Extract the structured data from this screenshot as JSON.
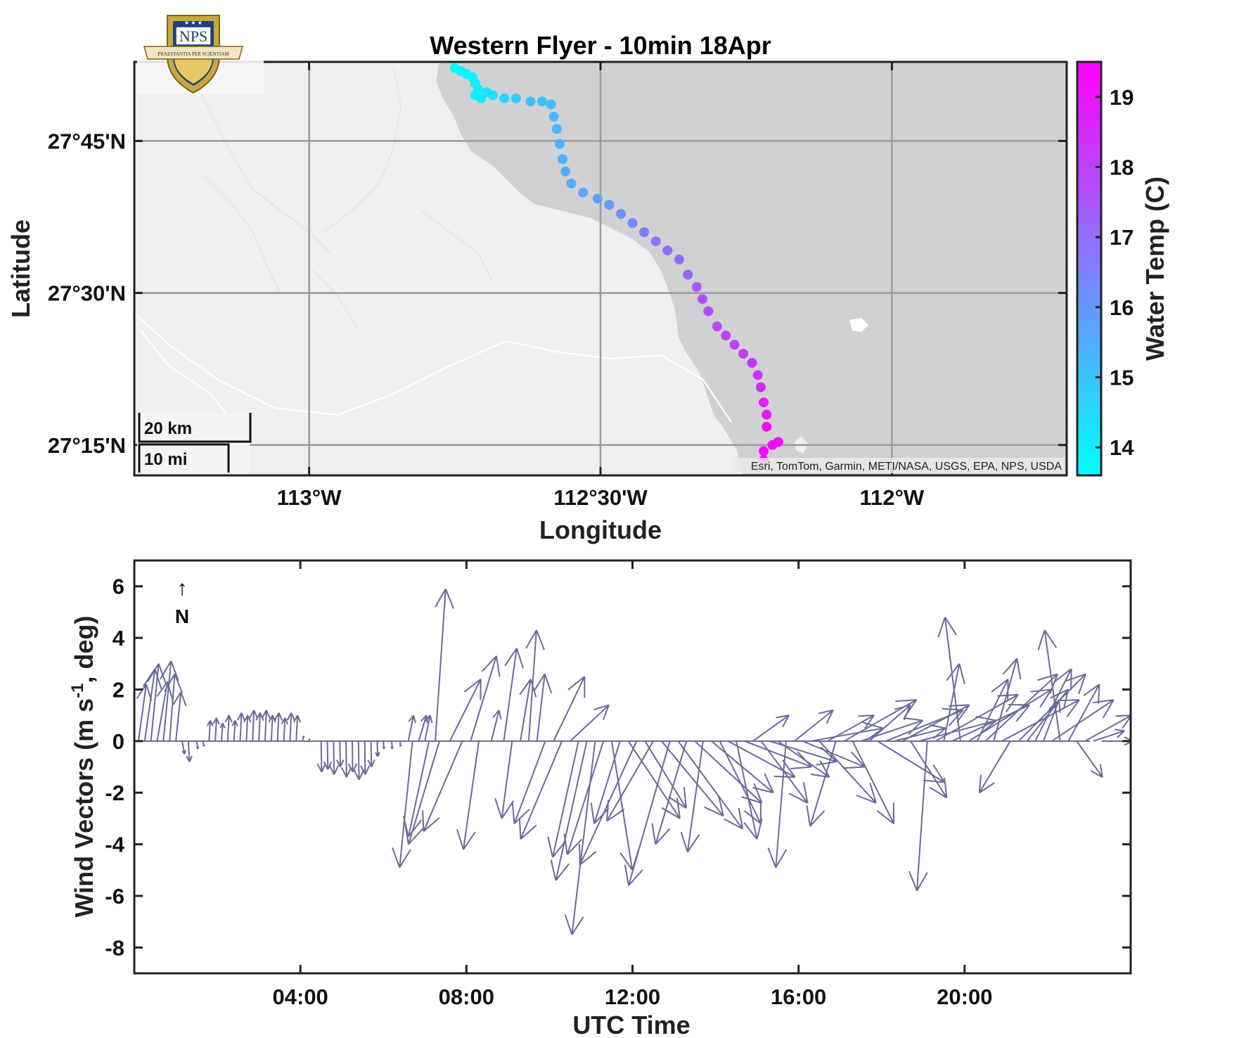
{
  "title": "Western Flyer - 10min 18Apr",
  "map": {
    "xlabel": "Longitude",
    "ylabel": "Latitude",
    "lon_range": [
      -113.3,
      -111.7
    ],
    "lat_range": [
      27.2,
      27.88
    ],
    "lon_ticks": [
      -113.0,
      -112.5,
      -112.0
    ],
    "lon_tick_labels": [
      "113°W",
      "112°30'W",
      "112°W"
    ],
    "lat_ticks": [
      27.25,
      27.5,
      27.75
    ],
    "lat_tick_labels": [
      "27°15'N",
      "27°30'N",
      "27°45'N"
    ],
    "grid": true,
    "attribution": "Esri, TomTom, Garmin, METI/NASA, USGS, EPA, NPS, USDA",
    "scalebar_km": "20 km",
    "scalebar_mi": "10 mi",
    "logo_text": "NPS",
    "logo_motto": "PRAESTANTIA PER SCIENTIAM",
    "land_color": "#efefef",
    "sea_color": "#cfd1d2"
  },
  "colorbar": {
    "label": "Water Temp (C)",
    "range": [
      13.6,
      19.5
    ],
    "ticks": [
      14,
      15,
      16,
      17,
      18,
      19
    ],
    "tick_labels": [
      "14",
      "15",
      "16",
      "17",
      "18",
      "19"
    ],
    "color_low": "#00ffff",
    "color_high": "#ff00ff",
    "colormap": "cool"
  },
  "wind": {
    "xlabel": "UTC Time",
    "ylabel": "Wind Vectors (m s",
    "ylabel_sup": "-1",
    "ylabel_end": ", deg)",
    "x_range_hours": [
      0,
      24
    ],
    "y_range": [
      -9,
      7
    ],
    "y_ticks": [
      6,
      4,
      2,
      0,
      -2,
      -4,
      -6,
      -8
    ],
    "y_tick_labels": [
      "6",
      "4",
      "2",
      "0",
      "-2",
      "-4",
      "-6",
      "-8"
    ],
    "x_ticks_hours": [
      4,
      8,
      12,
      16,
      20
    ],
    "x_tick_labels": [
      "04:00",
      "08:00",
      "12:00",
      "16:00",
      "20:00"
    ],
    "north_label": "N",
    "north_arrow": "↑",
    "vector_color": "#6a6a9a"
  },
  "chart_data": [
    {
      "type": "scatter",
      "title": "Western Flyer - 10min 18Apr",
      "xlabel": "Longitude",
      "ylabel": "Latitude",
      "xlim": [
        -113.3,
        -111.7
      ],
      "ylim": [
        27.2,
        27.88
      ],
      "color_variable": "Water Temp (C)",
      "points": [
        {
          "lon": -112.75,
          "lat": 27.87,
          "temp": 13.7
        },
        {
          "lon": -112.74,
          "lat": 27.865,
          "temp": 13.8
        },
        {
          "lon": -112.73,
          "lat": 27.86,
          "temp": 13.9
        },
        {
          "lon": -112.72,
          "lat": 27.855,
          "temp": 13.9
        },
        {
          "lon": -112.715,
          "lat": 27.845,
          "temp": 14.0
        },
        {
          "lon": -112.71,
          "lat": 27.835,
          "temp": 14.0
        },
        {
          "lon": -112.715,
          "lat": 27.825,
          "temp": 14.0
        },
        {
          "lon": -112.705,
          "lat": 27.82,
          "temp": 14.1
        },
        {
          "lon": -112.695,
          "lat": 27.83,
          "temp": 14.2
        },
        {
          "lon": -112.685,
          "lat": 27.825,
          "temp": 14.3
        },
        {
          "lon": -112.665,
          "lat": 27.82,
          "temp": 14.6
        },
        {
          "lon": -112.645,
          "lat": 27.82,
          "temp": 14.8
        },
        {
          "lon": -112.62,
          "lat": 27.815,
          "temp": 15.0
        },
        {
          "lon": -112.6,
          "lat": 27.815,
          "temp": 15.1
        },
        {
          "lon": -112.585,
          "lat": 27.81,
          "temp": 15.2
        },
        {
          "lon": -112.58,
          "lat": 27.79,
          "temp": 15.3
        },
        {
          "lon": -112.575,
          "lat": 27.77,
          "temp": 15.3
        },
        {
          "lon": -112.57,
          "lat": 27.745,
          "temp": 15.4
        },
        {
          "lon": -112.565,
          "lat": 27.72,
          "temp": 15.4
        },
        {
          "lon": -112.56,
          "lat": 27.7,
          "temp": 15.5
        },
        {
          "lon": -112.55,
          "lat": 27.68,
          "temp": 15.6
        },
        {
          "lon": -112.53,
          "lat": 27.665,
          "temp": 15.7
        },
        {
          "lon": -112.505,
          "lat": 27.655,
          "temp": 15.8
        },
        {
          "lon": -112.485,
          "lat": 27.645,
          "temp": 15.9
        },
        {
          "lon": -112.465,
          "lat": 27.63,
          "temp": 16.1
        },
        {
          "lon": -112.445,
          "lat": 27.615,
          "temp": 16.3
        },
        {
          "lon": -112.425,
          "lat": 27.6,
          "temp": 16.6
        },
        {
          "lon": -112.405,
          "lat": 27.585,
          "temp": 16.8
        },
        {
          "lon": -112.385,
          "lat": 27.57,
          "temp": 16.9
        },
        {
          "lon": -112.365,
          "lat": 27.555,
          "temp": 17.0
        },
        {
          "lon": -112.35,
          "lat": 27.53,
          "temp": 17.2
        },
        {
          "lon": -112.335,
          "lat": 27.51,
          "temp": 17.5
        },
        {
          "lon": -112.325,
          "lat": 27.49,
          "temp": 17.7
        },
        {
          "lon": -112.315,
          "lat": 27.47,
          "temp": 17.7
        },
        {
          "lon": -112.3,
          "lat": 27.445,
          "temp": 17.8
        },
        {
          "lon": -112.285,
          "lat": 27.43,
          "temp": 17.9
        },
        {
          "lon": -112.27,
          "lat": 27.415,
          "temp": 18.0
        },
        {
          "lon": -112.255,
          "lat": 27.4,
          "temp": 18.1
        },
        {
          "lon": -112.24,
          "lat": 27.385,
          "temp": 18.2
        },
        {
          "lon": -112.23,
          "lat": 27.365,
          "temp": 18.3
        },
        {
          "lon": -112.225,
          "lat": 27.345,
          "temp": 18.5
        },
        {
          "lon": -112.22,
          "lat": 27.32,
          "temp": 18.8
        },
        {
          "lon": -112.215,
          "lat": 27.3,
          "temp": 19.0
        },
        {
          "lon": -112.215,
          "lat": 27.28,
          "temp": 19.2
        },
        {
          "lon": -112.195,
          "lat": 27.255,
          "temp": 19.3
        },
        {
          "lon": -112.205,
          "lat": 27.25,
          "temp": 19.3
        },
        {
          "lon": -112.22,
          "lat": 27.24,
          "temp": 19.4
        },
        {
          "lon": -112.22,
          "lat": 27.225,
          "temp": 19.4
        }
      ]
    },
    {
      "type": "line",
      "title": "",
      "xlabel": "UTC Time",
      "ylabel": "Wind Vectors (m s-1, deg)",
      "xlim": [
        0,
        24
      ],
      "ylim": [
        -9,
        7
      ],
      "vectors": [
        {
          "t": 0.1,
          "u": 0.3,
          "v": 2.2
        },
        {
          "t": 0.25,
          "u": 0.4,
          "v": 2.8
        },
        {
          "t": 0.4,
          "u": 0.3,
          "v": 3.0
        },
        {
          "t": 0.55,
          "u": 0.4,
          "v": 2.3
        },
        {
          "t": 0.7,
          "u": 0.3,
          "v": 3.1
        },
        {
          "t": 0.85,
          "u": 0.2,
          "v": 2.6
        },
        {
          "t": 1.0,
          "u": 0.2,
          "v": 1.9
        },
        {
          "t": 1.15,
          "u": 0.1,
          "v": -0.5
        },
        {
          "t": 1.3,
          "u": 0.05,
          "v": -0.8
        },
        {
          "t": 1.5,
          "u": 0.05,
          "v": -0.3
        },
        {
          "t": 1.65,
          "u": 0.05,
          "v": -0.2
        },
        {
          "t": 1.8,
          "u": 0.05,
          "v": 0.8
        },
        {
          "t": 1.95,
          "u": 0.05,
          "v": 0.9
        },
        {
          "t": 2.1,
          "u": 0.05,
          "v": 0.7
        },
        {
          "t": 2.25,
          "u": 0.05,
          "v": 1.0
        },
        {
          "t": 2.4,
          "u": 0.05,
          "v": 0.8
        },
        {
          "t": 2.55,
          "u": 0.05,
          "v": 1.1
        },
        {
          "t": 2.7,
          "u": 0.05,
          "v": 1.0
        },
        {
          "t": 2.85,
          "u": 0.05,
          "v": 1.2
        },
        {
          "t": 3.0,
          "u": 0.05,
          "v": 1.1
        },
        {
          "t": 3.15,
          "u": 0.05,
          "v": 1.2
        },
        {
          "t": 3.3,
          "u": 0.05,
          "v": 1.0
        },
        {
          "t": 3.45,
          "u": 0.05,
          "v": 1.1
        },
        {
          "t": 3.6,
          "u": 0.05,
          "v": 0.9
        },
        {
          "t": 3.75,
          "u": 0.05,
          "v": 1.1
        },
        {
          "t": 3.9,
          "u": 0.05,
          "v": 1.0
        },
        {
          "t": 4.05,
          "u": 0.05,
          "v": 0.2
        },
        {
          "t": 4.2,
          "u": 0.05,
          "v": 0.1
        },
        {
          "t": 4.5,
          "u": 0.02,
          "v": -1.2
        },
        {
          "t": 4.65,
          "u": 0.02,
          "v": -1.1
        },
        {
          "t": 4.8,
          "u": 0.02,
          "v": -1.3
        },
        {
          "t": 4.95,
          "u": 0.02,
          "v": -1.0
        },
        {
          "t": 5.1,
          "u": 0.02,
          "v": -1.4
        },
        {
          "t": 5.25,
          "u": 0.02,
          "v": -1.2
        },
        {
          "t": 5.4,
          "u": 0.02,
          "v": -1.5
        },
        {
          "t": 5.55,
          "u": 0.02,
          "v": -1.3
        },
        {
          "t": 5.7,
          "u": 0.02,
          "v": -1.0
        },
        {
          "t": 5.85,
          "u": 0.02,
          "v": -0.6
        },
        {
          "t": 6.0,
          "u": 0.02,
          "v": -0.3
        },
        {
          "t": 6.2,
          "u": 0.02,
          "v": -0.3
        },
        {
          "t": 6.4,
          "u": 0.02,
          "v": -0.2
        },
        {
          "t": 6.6,
          "u": 0.2,
          "v": 1.0
        },
        {
          "t": 6.7,
          "u": -0.5,
          "v": -4.9
        },
        {
          "t": 6.85,
          "u": 0.3,
          "v": 1.0
        },
        {
          "t": 7.0,
          "u": 0.2,
          "v": 1.0
        },
        {
          "t": 7.1,
          "u": -0.8,
          "v": -3.7
        },
        {
          "t": 7.25,
          "u": 0.4,
          "v": 5.9
        },
        {
          "t": 7.35,
          "u": -1.2,
          "v": -4.0
        },
        {
          "t": 7.6,
          "u": 1.2,
          "v": 2.4
        },
        {
          "t": 7.9,
          "u": -1.5,
          "v": -3.5
        },
        {
          "t": 8.1,
          "u": 1.0,
          "v": 3.3
        },
        {
          "t": 8.3,
          "u": -0.6,
          "v": -4.2
        },
        {
          "t": 8.6,
          "u": 0.3,
          "v": 1.2
        },
        {
          "t": 8.9,
          "u": 0.5,
          "v": 3.6
        },
        {
          "t": 9.1,
          "u": -0.4,
          "v": -3.0
        },
        {
          "t": 9.3,
          "u": 0.4,
          "v": 2.4
        },
        {
          "t": 9.5,
          "u": 0.3,
          "v": 4.3
        },
        {
          "t": 9.7,
          "u": 0.3,
          "v": 2.6
        },
        {
          "t": 9.9,
          "u": -1.2,
          "v": -3.2
        },
        {
          "t": 10.1,
          "u": 1.2,
          "v": 2.5
        },
        {
          "t": 10.3,
          "u": -1.6,
          "v": -3.8
        },
        {
          "t": 10.5,
          "u": 1.5,
          "v": 1.4
        },
        {
          "t": 10.7,
          "u": -1.0,
          "v": -4.5
        },
        {
          "t": 10.9,
          "u": -1.2,
          "v": -5.4
        },
        {
          "t": 11.1,
          "u": -0.9,
          "v": -7.5
        },
        {
          "t": 11.3,
          "u": -1.4,
          "v": -4.4
        },
        {
          "t": 11.5,
          "u": 0.8,
          "v": -5.0
        },
        {
          "t": 11.7,
          "u": -1.0,
          "v": -3.2
        },
        {
          "t": 11.9,
          "u": 2.0,
          "v": -3.0
        },
        {
          "t": 12.1,
          "u": -2.2,
          "v": -4.8
        },
        {
          "t": 12.3,
          "u": 1.6,
          "v": -2.6
        },
        {
          "t": 12.5,
          "u": -1.8,
          "v": -3.1
        },
        {
          "t": 12.7,
          "u": 2.4,
          "v": -2.9
        },
        {
          "t": 12.9,
          "u": -1.6,
          "v": -5.6
        },
        {
          "t": 13.1,
          "u": 2.5,
          "v": -3.4
        },
        {
          "t": 13.3,
          "u": -1.2,
          "v": -4.0
        },
        {
          "t": 13.5,
          "u": 2.6,
          "v": -2.4
        },
        {
          "t": 13.7,
          "u": -0.6,
          "v": -4.3
        },
        {
          "t": 13.9,
          "u": 2.4,
          "v": -2.0
        },
        {
          "t": 14.1,
          "u": 1.6,
          "v": -3.2
        },
        {
          "t": 14.3,
          "u": 2.6,
          "v": -1.4
        },
        {
          "t": 14.5,
          "u": 0.8,
          "v": -3.8
        },
        {
          "t": 14.7,
          "u": 2.6,
          "v": -1.0
        },
        {
          "t": 14.9,
          "u": 1.4,
          "v": 1.0
        },
        {
          "t": 15.1,
          "u": 1.8,
          "v": -2.4
        },
        {
          "t": 15.3,
          "u": 2.6,
          "v": -0.8
        },
        {
          "t": 15.5,
          "u": 2.0,
          "v": -1.4
        },
        {
          "t": 15.7,
          "u": -0.4,
          "v": -4.9
        },
        {
          "t": 15.9,
          "u": 1.5,
          "v": 1.2
        },
        {
          "t": 16.1,
          "u": 2.4,
          "v": -1.0
        },
        {
          "t": 16.3,
          "u": 2.8,
          "v": 0.5
        },
        {
          "t": 16.5,
          "u": 2.2,
          "v": -2.4
        },
        {
          "t": 16.7,
          "u": 1.8,
          "v": 1.0
        },
        {
          "t": 16.9,
          "u": -1.0,
          "v": -3.3
        },
        {
          "t": 17.1,
          "u": 2.8,
          "v": 1.6
        },
        {
          "t": 17.3,
          "u": 1.6,
          "v": -3.2
        },
        {
          "t": 17.5,
          "u": 2.4,
          "v": 0.8
        },
        {
          "t": 17.7,
          "u": 1.6,
          "v": 1.4
        },
        {
          "t": 17.9,
          "u": 2.6,
          "v": -1.6
        },
        {
          "t": 18.1,
          "u": 3.0,
          "v": 1.2
        },
        {
          "t": 18.3,
          "u": 2.0,
          "v": 0.5
        },
        {
          "t": 18.5,
          "u": 2.6,
          "v": 1.4
        },
        {
          "t": 18.7,
          "u": 1.4,
          "v": -2.2
        },
        {
          "t": 18.9,
          "u": 3.0,
          "v": 0.8
        },
        {
          "t": 19.1,
          "u": -0.4,
          "v": -5.8
        },
        {
          "t": 19.3,
          "u": 3.2,
          "v": 1.8
        },
        {
          "t": 19.5,
          "u": 0.6,
          "v": 3.0
        },
        {
          "t": 19.7,
          "u": 3.0,
          "v": 1.4
        },
        {
          "t": 19.9,
          "u": -0.6,
          "v": 4.8
        },
        {
          "t": 20.1,
          "u": 3.2,
          "v": 2.0
        },
        {
          "t": 20.3,
          "u": 1.2,
          "v": 2.4
        },
        {
          "t": 20.5,
          "u": 2.8,
          "v": 2.6
        },
        {
          "t": 20.7,
          "u": 0.9,
          "v": 3.2
        },
        {
          "t": 20.9,
          "u": 3.0,
          "v": 1.6
        },
        {
          "t": 21.1,
          "u": -1.2,
          "v": -2.0
        },
        {
          "t": 21.3,
          "u": 2.6,
          "v": 2.6
        },
        {
          "t": 21.5,
          "u": 1.6,
          "v": 2.0
        },
        {
          "t": 21.7,
          "u": 1.4,
          "v": 2.8
        },
        {
          "t": 21.9,
          "u": 0.6,
          "v": 1.6
        },
        {
          "t": 22.1,
          "u": 2.4,
          "v": 1.6
        },
        {
          "t": 22.3,
          "u": -0.6,
          "v": 4.3
        },
        {
          "t": 22.5,
          "u": 1.2,
          "v": 2.2
        },
        {
          "t": 22.7,
          "u": 1.0,
          "v": -1.4
        },
        {
          "t": 22.9,
          "u": 1.8,
          "v": 1.0
        },
        {
          "t": 23.1,
          "u": 1.2,
          "v": 0.4
        },
        {
          "t": 23.3,
          "u": 1.2,
          "v": 0.0
        }
      ]
    }
  ]
}
